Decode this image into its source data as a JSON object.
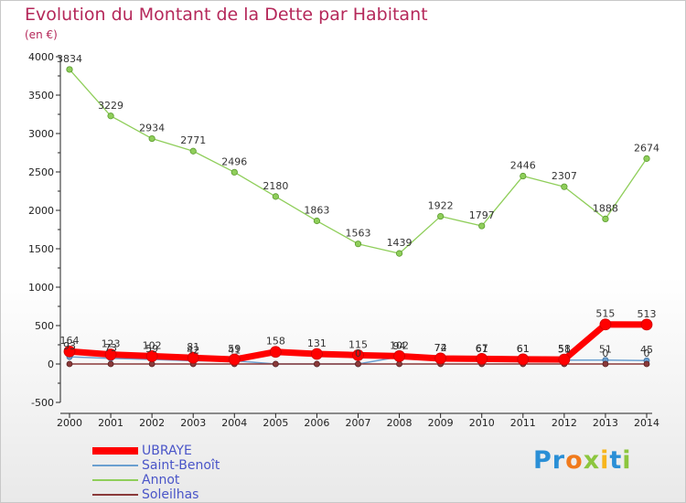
{
  "title": "Evolution du Montant de la Dette par Habitant",
  "subtitle": "(en €)",
  "logo": "Proxiti",
  "chart_data": {
    "type": "line",
    "x": [
      "2000",
      "2001",
      "2002",
      "2003",
      "2004",
      "2005",
      "2006",
      "2007",
      "2008",
      "2009",
      "2010",
      "2011",
      "2012",
      "2013",
      "2014"
    ],
    "ylim": [
      -500,
      4000
    ],
    "yticks": [
      4000,
      3500,
      3000,
      2500,
      2000,
      1500,
      1000,
      500,
      0,
      -500
    ],
    "grid": false,
    "legend_position": "bottom-left",
    "series": [
      {
        "name": "UBRAYE",
        "color": "#ff0000",
        "values": [
          164,
          123,
          102,
          81,
          59,
          158,
          131,
          115,
          102,
          72,
          67,
          61,
          58,
          515,
          513
        ],
        "labels": [
          "164",
          "123",
          "102",
          "81",
          "59",
          "158",
          "131",
          "115",
          "102",
          "72",
          "67",
          "61",
          "58",
          "515",
          "513"
        ]
      },
      {
        "name": "Saint-Benoît",
        "color": "#6a9fd0",
        "values": [
          93,
          73,
          59,
          42,
          41,
          0,
          0,
          0,
          94,
          74,
          61,
          61,
          51,
          51,
          45
        ],
        "labels": [
          "93",
          "73",
          "59",
          "42",
          "41",
          "",
          "",
          "",
          "94",
          "74",
          "61",
          "61",
          "51",
          "51",
          "45"
        ]
      },
      {
        "name": "Annot",
        "color": "#8fce5a",
        "values": [
          3834,
          3229,
          2934,
          2771,
          2496,
          2180,
          1863,
          1563,
          1439,
          1922,
          1797,
          2446,
          2307,
          1888,
          2674
        ],
        "labels": [
          "3834",
          "3229",
          "2934",
          "2771",
          "2496",
          "2180",
          "1863",
          "1563",
          "1439",
          "1922",
          "1797",
          "2446",
          "2307",
          "1888",
          "2674"
        ]
      },
      {
        "name": "Soleilhas",
        "color": "#8a3a3a",
        "values": [
          0,
          0,
          0,
          0,
          0,
          0,
          0,
          0,
          0,
          0,
          0,
          0,
          0,
          0,
          0
        ],
        "labels": [
          "",
          "",
          "",
          "",
          "",
          "",
          "",
          "0",
          "",
          "",
          "",
          "",
          "",
          "0",
          "0"
        ]
      }
    ]
  }
}
